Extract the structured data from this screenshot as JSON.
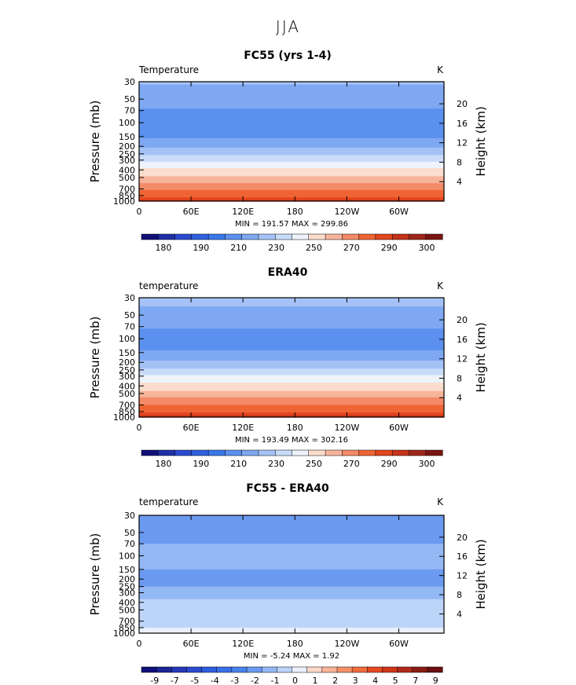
{
  "page": {
    "title": "JJA"
  },
  "chart_data": [
    {
      "type": "heatmap",
      "title": "FC55 (yrs 1-4)",
      "left_label": "Temperature",
      "unit": "K",
      "ylabel": "Pressure  (mb)",
      "ylabel_right": "Height  (km)",
      "x_ticks": [
        "0",
        "60E",
        "120E",
        "180",
        "120W",
        "60W"
      ],
      "y_ticks": [
        "30",
        "50",
        "70",
        "100",
        "150",
        "200",
        "250",
        "300",
        "400",
        "500",
        "700",
        "850",
        "1000"
      ],
      "height_ticks": [
        "20",
        "16",
        "12",
        "8",
        "4"
      ],
      "min_max_label": "MIN = 191.57  MAX = 299.86",
      "colorbar_labels": [
        "180",
        "190",
        "210",
        "230",
        "250",
        "270",
        "290",
        "300"
      ],
      "levels": [
        175,
        180,
        185,
        190,
        200,
        210,
        220,
        230,
        240,
        250,
        260,
        270,
        280,
        290,
        295,
        300
      ],
      "profile": [
        {
          "p": 30,
          "v": 221
        },
        {
          "p": 50,
          "v": 215
        },
        {
          "p": 70,
          "v": 209
        },
        {
          "p": 100,
          "v": 200
        },
        {
          "p": 150,
          "v": 209
        },
        {
          "p": 200,
          "v": 218
        },
        {
          "p": 250,
          "v": 228
        },
        {
          "p": 300,
          "v": 238
        },
        {
          "p": 400,
          "v": 252
        },
        {
          "p": 500,
          "v": 262
        },
        {
          "p": 700,
          "v": 278
        },
        {
          "p": 850,
          "v": 287
        },
        {
          "p": 1000,
          "v": 297
        }
      ]
    },
    {
      "type": "heatmap",
      "title": "ERA40",
      "left_label": "temperature",
      "unit": "K",
      "ylabel": "Pressure  (mb)",
      "ylabel_right": "Height  (km)",
      "x_ticks": [
        "0",
        "60E",
        "120E",
        "180",
        "120W",
        "60W"
      ],
      "y_ticks": [
        "30",
        "50",
        "70",
        "100",
        "150",
        "200",
        "250",
        "300",
        "400",
        "500",
        "700",
        "850",
        "1000"
      ],
      "height_ticks": [
        "20",
        "16",
        "12",
        "8",
        "4"
      ],
      "min_max_label": "MIN = 193.49  MAX = 302.16",
      "colorbar_labels": [
        "180",
        "190",
        "210",
        "230",
        "250",
        "270",
        "290",
        "300"
      ],
      "levels": [
        175,
        180,
        185,
        190,
        200,
        210,
        220,
        230,
        240,
        250,
        260,
        270,
        280,
        290,
        295,
        300
      ],
      "profile": [
        {
          "p": 30,
          "v": 223
        },
        {
          "p": 50,
          "v": 217
        },
        {
          "p": 70,
          "v": 212
        },
        {
          "p": 100,
          "v": 203
        },
        {
          "p": 150,
          "v": 212
        },
        {
          "p": 200,
          "v": 221
        },
        {
          "p": 250,
          "v": 231
        },
        {
          "p": 300,
          "v": 241
        },
        {
          "p": 400,
          "v": 254
        },
        {
          "p": 500,
          "v": 264
        },
        {
          "p": 700,
          "v": 280
        },
        {
          "p": 850,
          "v": 289
        },
        {
          "p": 1000,
          "v": 299
        }
      ]
    },
    {
      "type": "heatmap",
      "title": "FC55 - ERA40",
      "left_label": "temperature",
      "unit": "K",
      "ylabel": "Pressure  (mb)",
      "ylabel_right": "Height  (km)",
      "x_ticks": [
        "0",
        "60E",
        "120E",
        "180",
        "120W",
        "60W"
      ],
      "y_ticks": [
        "30",
        "50",
        "70",
        "100",
        "150",
        "200",
        "250",
        "300",
        "400",
        "500",
        "700",
        "850",
        "1000"
      ],
      "height_ticks": [
        "20",
        "16",
        "12",
        "8",
        "4"
      ],
      "min_max_label": "MIN =   -5.24   MAX =    1.92",
      "colorbar_labels": [
        "-9",
        "-7",
        "-5",
        "-4",
        "-3",
        "-2",
        "-1",
        "0",
        "1",
        "2",
        "3",
        "4",
        "5",
        "7",
        "9"
      ],
      "levels": [
        -10,
        -9,
        -8,
        -7,
        -6,
        -5,
        -4,
        -3,
        -2,
        -1,
        0,
        1,
        2,
        3,
        4,
        5,
        6,
        7,
        8,
        9,
        10
      ],
      "profile": [
        {
          "p": 30,
          "v": -3.5
        },
        {
          "p": 50,
          "v": -3.2
        },
        {
          "p": 70,
          "v": -3.0
        },
        {
          "p": 100,
          "v": -2.5
        },
        {
          "p": 150,
          "v": -3.0
        },
        {
          "p": 200,
          "v": -3.5
        },
        {
          "p": 250,
          "v": -3.0
        },
        {
          "p": 300,
          "v": -2.5
        },
        {
          "p": 400,
          "v": -1.8
        },
        {
          "p": 500,
          "v": -1.5
        },
        {
          "p": 700,
          "v": -1.2
        },
        {
          "p": 850,
          "v": -1.0
        },
        {
          "p": 1000,
          "v": -0.8
        }
      ]
    }
  ],
  "colors": {
    "temperature_palette": [
      "#10107a",
      "#1e2fa8",
      "#2a4bd0",
      "#2f62e0",
      "#3a78ea",
      "#5b90ee",
      "#7ea8f2",
      "#a4c2f6",
      "#c8dcfa",
      "#eef2fb",
      "#fbdccd",
      "#f8b49a",
      "#f48a66",
      "#ef6434",
      "#e4451f",
      "#c5331a",
      "#a0261a",
      "#7a1510"
    ],
    "difference_palette": [
      "#10107a",
      "#1c2694",
      "#2538b8",
      "#2a4bd0",
      "#2f5de0",
      "#3a6fe8",
      "#4a82ec",
      "#6b9af0",
      "#93b8f4",
      "#bcd4f8",
      "#eaf0fb",
      "#fbd8c8",
      "#f8b498",
      "#f49068",
      "#ef6c3e",
      "#e64b22",
      "#d0361a",
      "#b0281a",
      "#8a1c14",
      "#6a1010"
    ],
    "frame": "#000000"
  }
}
